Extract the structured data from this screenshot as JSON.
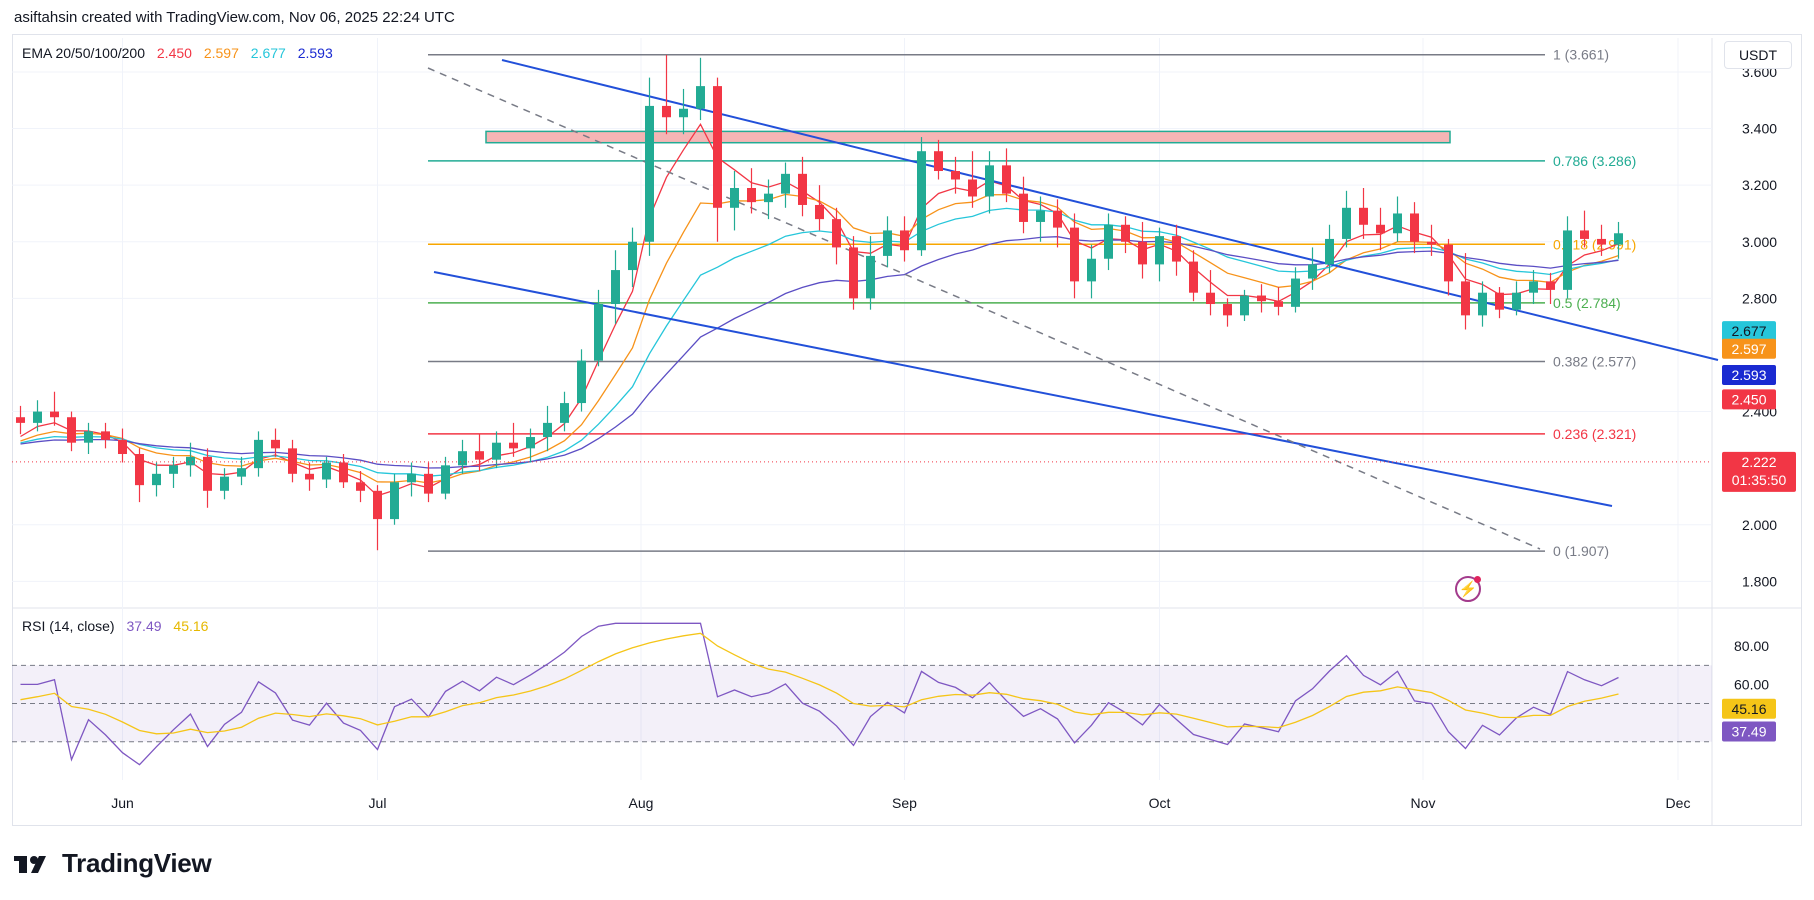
{
  "header": {
    "attribution": "asiftahsin created with TradingView.com, Nov 06, 2025 22:24 UTC"
  },
  "toolbar": {
    "currency": "USDT"
  },
  "legends": {
    "ema": {
      "label": "EMA 20/50/100/200",
      "values": [
        "2.450",
        "2.597",
        "2.677",
        "2.593"
      ]
    },
    "rsi": {
      "label": "RSI (14, close)",
      "values": [
        "37.49",
        "45.16"
      ]
    }
  },
  "brand": {
    "name": "TradingView"
  },
  "colors": {
    "up": "#22ab94",
    "down": "#f23645",
    "ema20": "#f23645",
    "ema50": "#f7931a",
    "ema100": "#26c6da",
    "ema200": "#5b4ec4",
    "channel": "#2250d9",
    "zone": "#f5b5b5",
    "rsi": "#7e57c2",
    "rsi_ma": "#f5c518"
  },
  "chart_data": [
    {
      "type": "candlestick",
      "ylim": [
        1.72,
        3.72
      ],
      "y_ticks": [
        "3.600",
        "3.400",
        "3.200",
        "3.000",
        "2.800",
        "2.400",
        "2.000",
        "1.800"
      ],
      "y_tick_values": [
        3.6,
        3.4,
        3.2,
        3.0,
        2.8,
        2.4,
        2.0,
        1.8
      ],
      "x_ticks": [
        "Jun",
        "Jul",
        "Aug",
        "Sep",
        "Oct",
        "Nov",
        "Dec"
      ],
      "x_tick_dates": [
        "2025-06-01",
        "2025-07-01",
        "2025-08-01",
        "2025-09-01",
        "2025-10-01",
        "2025-11-01",
        "2025-12-01"
      ],
      "x_range": [
        "2025-05-19",
        "2025-12-05"
      ],
      "candles": [
        {
          "d": "2025-05-20",
          "o": 2.38,
          "h": 2.42,
          "l": 2.32,
          "c": 2.36
        },
        {
          "d": "2025-05-22",
          "o": 2.36,
          "h": 2.44,
          "l": 2.33,
          "c": 2.4
        },
        {
          "d": "2025-05-24",
          "o": 2.4,
          "h": 2.47,
          "l": 2.35,
          "c": 2.38
        },
        {
          "d": "2025-05-26",
          "o": 2.38,
          "h": 2.4,
          "l": 2.26,
          "c": 2.29
        },
        {
          "d": "2025-05-28",
          "o": 2.29,
          "h": 2.36,
          "l": 2.25,
          "c": 2.33
        },
        {
          "d": "2025-05-30",
          "o": 2.33,
          "h": 2.36,
          "l": 2.27,
          "c": 2.3
        },
        {
          "d": "2025-06-01",
          "o": 2.3,
          "h": 2.34,
          "l": 2.22,
          "c": 2.25
        },
        {
          "d": "2025-06-03",
          "o": 2.25,
          "h": 2.27,
          "l": 2.08,
          "c": 2.14
        },
        {
          "d": "2025-06-05",
          "o": 2.14,
          "h": 2.22,
          "l": 2.1,
          "c": 2.18
        },
        {
          "d": "2025-06-07",
          "o": 2.18,
          "h": 2.24,
          "l": 2.13,
          "c": 2.21
        },
        {
          "d": "2025-06-09",
          "o": 2.21,
          "h": 2.29,
          "l": 2.17,
          "c": 2.24
        },
        {
          "d": "2025-06-11",
          "o": 2.24,
          "h": 2.27,
          "l": 2.06,
          "c": 2.12
        },
        {
          "d": "2025-06-13",
          "o": 2.12,
          "h": 2.2,
          "l": 2.09,
          "c": 2.17
        },
        {
          "d": "2025-06-15",
          "o": 2.17,
          "h": 2.24,
          "l": 2.14,
          "c": 2.2
        },
        {
          "d": "2025-06-17",
          "o": 2.2,
          "h": 2.33,
          "l": 2.17,
          "c": 2.3
        },
        {
          "d": "2025-06-19",
          "o": 2.3,
          "h": 2.34,
          "l": 2.24,
          "c": 2.27
        },
        {
          "d": "2025-06-21",
          "o": 2.27,
          "h": 2.3,
          "l": 2.15,
          "c": 2.18
        },
        {
          "d": "2025-06-23",
          "o": 2.18,
          "h": 2.22,
          "l": 2.12,
          "c": 2.16
        },
        {
          "d": "2025-06-25",
          "o": 2.16,
          "h": 2.24,
          "l": 2.13,
          "c": 2.22
        },
        {
          "d": "2025-06-27",
          "o": 2.22,
          "h": 2.25,
          "l": 2.13,
          "c": 2.15
        },
        {
          "d": "2025-06-29",
          "o": 2.15,
          "h": 2.19,
          "l": 2.08,
          "c": 2.12
        },
        {
          "d": "2025-07-01",
          "o": 2.12,
          "h": 2.14,
          "l": 1.91,
          "c": 2.02
        },
        {
          "d": "2025-07-03",
          "o": 2.02,
          "h": 2.18,
          "l": 2.0,
          "c": 2.15
        },
        {
          "d": "2025-07-05",
          "o": 2.15,
          "h": 2.22,
          "l": 2.1,
          "c": 2.18
        },
        {
          "d": "2025-07-07",
          "o": 2.18,
          "h": 2.22,
          "l": 2.08,
          "c": 2.11
        },
        {
          "d": "2025-07-09",
          "o": 2.11,
          "h": 2.24,
          "l": 2.09,
          "c": 2.21
        },
        {
          "d": "2025-07-11",
          "o": 2.21,
          "h": 2.3,
          "l": 2.18,
          "c": 2.26
        },
        {
          "d": "2025-07-13",
          "o": 2.26,
          "h": 2.32,
          "l": 2.19,
          "c": 2.23
        },
        {
          "d": "2025-07-15",
          "o": 2.23,
          "h": 2.33,
          "l": 2.2,
          "c": 2.29
        },
        {
          "d": "2025-07-17",
          "o": 2.29,
          "h": 2.36,
          "l": 2.24,
          "c": 2.27
        },
        {
          "d": "2025-07-19",
          "o": 2.27,
          "h": 2.34,
          "l": 2.22,
          "c": 2.31
        },
        {
          "d": "2025-07-21",
          "o": 2.31,
          "h": 2.42,
          "l": 2.26,
          "c": 2.36
        },
        {
          "d": "2025-07-23",
          "o": 2.36,
          "h": 2.47,
          "l": 2.33,
          "c": 2.43
        },
        {
          "d": "2025-07-25",
          "o": 2.43,
          "h": 2.62,
          "l": 2.4,
          "c": 2.58
        },
        {
          "d": "2025-07-27",
          "o": 2.58,
          "h": 2.83,
          "l": 2.56,
          "c": 2.78
        },
        {
          "d": "2025-07-29",
          "o": 2.78,
          "h": 2.97,
          "l": 2.71,
          "c": 2.9
        },
        {
          "d": "2025-07-31",
          "o": 2.9,
          "h": 3.05,
          "l": 2.84,
          "c": 3.0
        },
        {
          "d": "2025-08-02",
          "o": 3.0,
          "h": 3.58,
          "l": 2.95,
          "c": 3.48
        },
        {
          "d": "2025-08-04",
          "o": 3.48,
          "h": 3.66,
          "l": 3.38,
          "c": 3.44
        },
        {
          "d": "2025-08-06",
          "o": 3.44,
          "h": 3.54,
          "l": 3.38,
          "c": 3.47
        },
        {
          "d": "2025-08-08",
          "o": 3.47,
          "h": 3.65,
          "l": 3.43,
          "c": 3.55
        },
        {
          "d": "2025-08-10",
          "o": 3.55,
          "h": 3.58,
          "l": 3.0,
          "c": 3.12
        },
        {
          "d": "2025-08-12",
          "o": 3.12,
          "h": 3.25,
          "l": 3.04,
          "c": 3.19
        },
        {
          "d": "2025-08-14",
          "o": 3.19,
          "h": 3.26,
          "l": 3.1,
          "c": 3.14
        },
        {
          "d": "2025-08-16",
          "o": 3.14,
          "h": 3.22,
          "l": 3.08,
          "c": 3.17
        },
        {
          "d": "2025-08-18",
          "o": 3.17,
          "h": 3.28,
          "l": 3.12,
          "c": 3.24
        },
        {
          "d": "2025-08-20",
          "o": 3.24,
          "h": 3.3,
          "l": 3.09,
          "c": 3.13
        },
        {
          "d": "2025-08-22",
          "o": 3.13,
          "h": 3.2,
          "l": 3.04,
          "c": 3.08
        },
        {
          "d": "2025-08-24",
          "o": 3.08,
          "h": 3.12,
          "l": 2.92,
          "c": 2.98
        },
        {
          "d": "2025-08-26",
          "o": 2.98,
          "h": 3.02,
          "l": 2.76,
          "c": 2.8
        },
        {
          "d": "2025-08-28",
          "o": 2.8,
          "h": 3.02,
          "l": 2.76,
          "c": 2.95
        },
        {
          "d": "2025-08-30",
          "o": 2.95,
          "h": 3.09,
          "l": 2.91,
          "c": 3.04
        },
        {
          "d": "2025-09-01",
          "o": 3.04,
          "h": 3.09,
          "l": 2.93,
          "c": 2.97
        },
        {
          "d": "2025-09-03",
          "o": 2.97,
          "h": 3.37,
          "l": 2.95,
          "c": 3.32
        },
        {
          "d": "2025-09-05",
          "o": 3.32,
          "h": 3.36,
          "l": 3.22,
          "c": 3.25
        },
        {
          "d": "2025-09-07",
          "o": 3.25,
          "h": 3.3,
          "l": 3.17,
          "c": 3.22
        },
        {
          "d": "2025-09-09",
          "o": 3.22,
          "h": 3.32,
          "l": 3.12,
          "c": 3.16
        },
        {
          "d": "2025-09-11",
          "o": 3.16,
          "h": 3.32,
          "l": 3.1,
          "c": 3.27
        },
        {
          "d": "2025-09-13",
          "o": 3.27,
          "h": 3.33,
          "l": 3.14,
          "c": 3.17
        },
        {
          "d": "2025-09-15",
          "o": 3.17,
          "h": 3.23,
          "l": 3.03,
          "c": 3.07
        },
        {
          "d": "2025-09-17",
          "o": 3.07,
          "h": 3.16,
          "l": 3.0,
          "c": 3.11
        },
        {
          "d": "2025-09-19",
          "o": 3.11,
          "h": 3.15,
          "l": 2.98,
          "c": 3.05
        },
        {
          "d": "2025-09-21",
          "o": 3.05,
          "h": 3.1,
          "l": 2.8,
          "c": 2.86
        },
        {
          "d": "2025-09-23",
          "o": 2.86,
          "h": 2.99,
          "l": 2.8,
          "c": 2.94
        },
        {
          "d": "2025-09-25",
          "o": 2.94,
          "h": 3.1,
          "l": 2.9,
          "c": 3.06
        },
        {
          "d": "2025-09-27",
          "o": 3.06,
          "h": 3.09,
          "l": 2.96,
          "c": 3.0
        },
        {
          "d": "2025-09-29",
          "o": 3.0,
          "h": 3.07,
          "l": 2.87,
          "c": 2.92
        },
        {
          "d": "2025-10-01",
          "o": 2.92,
          "h": 3.05,
          "l": 2.86,
          "c": 3.02
        },
        {
          "d": "2025-10-03",
          "o": 3.02,
          "h": 3.06,
          "l": 2.88,
          "c": 2.93
        },
        {
          "d": "2025-10-05",
          "o": 2.93,
          "h": 2.97,
          "l": 2.79,
          "c": 2.82
        },
        {
          "d": "2025-10-07",
          "o": 2.82,
          "h": 2.9,
          "l": 2.74,
          "c": 2.78
        },
        {
          "d": "2025-10-09",
          "o": 2.78,
          "h": 2.8,
          "l": 2.7,
          "c": 2.74
        },
        {
          "d": "2025-10-11",
          "o": 2.74,
          "h": 2.83,
          "l": 2.72,
          "c": 2.81
        },
        {
          "d": "2025-10-13",
          "o": 2.81,
          "h": 2.85,
          "l": 2.75,
          "c": 2.79
        },
        {
          "d": "2025-10-15",
          "o": 2.79,
          "h": 2.84,
          "l": 2.74,
          "c": 2.77
        },
        {
          "d": "2025-10-17",
          "o": 2.77,
          "h": 2.91,
          "l": 2.75,
          "c": 2.87
        },
        {
          "d": "2025-10-19",
          "o": 2.87,
          "h": 2.98,
          "l": 2.83,
          "c": 2.92
        },
        {
          "d": "2025-10-21",
          "o": 2.92,
          "h": 3.06,
          "l": 2.89,
          "c": 3.01
        },
        {
          "d": "2025-10-23",
          "o": 3.01,
          "h": 3.18,
          "l": 2.98,
          "c": 3.12
        },
        {
          "d": "2025-10-25",
          "o": 3.12,
          "h": 3.19,
          "l": 3.01,
          "c": 3.06
        },
        {
          "d": "2025-10-27",
          "o": 3.06,
          "h": 3.12,
          "l": 2.97,
          "c": 3.03
        },
        {
          "d": "2025-10-29",
          "o": 3.03,
          "h": 3.16,
          "l": 3.0,
          "c": 3.1
        },
        {
          "d": "2025-10-31",
          "o": 3.1,
          "h": 3.14,
          "l": 2.96,
          "c": 3.0
        },
        {
          "d": "2025-11-02",
          "o": 3.0,
          "h": 3.06,
          "l": 2.95,
          "c": 2.99
        },
        {
          "d": "2025-11-04",
          "o": 2.99,
          "h": 3.01,
          "l": 2.81,
          "c": 2.86
        },
        {
          "d": "2025-11-06",
          "o": 2.86,
          "h": 2.96,
          "l": 2.69,
          "c": 2.74
        },
        {
          "d": "2025-11-08",
          "o": 2.74,
          "h": 2.86,
          "l": 2.7,
          "c": 2.82
        },
        {
          "d": "2025-11-10",
          "o": 2.82,
          "h": 2.84,
          "l": 2.73,
          "c": 2.76
        },
        {
          "d": "2025-11-12",
          "o": 2.76,
          "h": 2.86,
          "l": 2.74,
          "c": 2.82
        },
        {
          "d": "2025-11-14",
          "o": 2.82,
          "h": 2.9,
          "l": 2.78,
          "c": 2.86
        },
        {
          "d": "2025-11-16",
          "o": 2.86,
          "h": 2.89,
          "l": 2.78,
          "c": 2.83
        },
        {
          "d": "2025-11-18",
          "o": 2.83,
          "h": 3.09,
          "l": 2.8,
          "c": 3.04
        },
        {
          "d": "2025-11-20",
          "o": 3.04,
          "h": 3.11,
          "l": 2.98,
          "c": 3.01
        },
        {
          "d": "2025-11-22",
          "o": 3.01,
          "h": 3.06,
          "l": 2.95,
          "c": 2.99
        },
        {
          "d": "2025-11-24",
          "o": 2.99,
          "h": 3.07,
          "l": 2.94,
          "c": 3.03
        }
      ],
      "note_hidden": "",
      "fib_levels": [
        {
          "ratio": "1",
          "value": 3.661,
          "label": "1 (3.661)",
          "color": "#787b86"
        },
        {
          "ratio": "0.786",
          "value": 3.286,
          "label": "0.786 (3.286)",
          "color": "#22ab94"
        },
        {
          "ratio": "0.618",
          "value": 2.991,
          "label": "0.618 (2.991)",
          "color": "#f7a600"
        },
        {
          "ratio": "0.5",
          "value": 2.784,
          "label": "0.5 (2.784)",
          "color": "#4caf50"
        },
        {
          "ratio": "0.382",
          "value": 2.577,
          "label": "0.382 (2.577)",
          "color": "#787b86"
        },
        {
          "ratio": "0.236",
          "value": 2.321,
          "label": "0.236 (2.321)",
          "color": "#f23645"
        },
        {
          "ratio": "0",
          "value": 1.907,
          "label": "0 (1.907)",
          "color": "#787b86"
        }
      ],
      "resistance_zone": [
        3.35,
        3.39
      ],
      "price_labels": [
        {
          "value": 2.677,
          "text": "2.677",
          "color": "#26c6da",
          "fg": "#131722"
        },
        {
          "value": 2.597,
          "text": "2.597",
          "color": "#f7931a",
          "fg": "#ffffff"
        },
        {
          "value": 2.593,
          "text": "2.593",
          "color": "#1a2ad1",
          "fg": "#ffffff"
        },
        {
          "value": 2.45,
          "text": "2.450",
          "color": "#f23645",
          "fg": "#ffffff"
        }
      ],
      "current_price": {
        "value": 2.222,
        "text": "2.222",
        "countdown": "01:35:50"
      }
    },
    {
      "type": "line",
      "name": "RSI (14, close)",
      "ylim": [
        10,
        100
      ],
      "y_ticks": [
        "80.00",
        "60.00"
      ],
      "y_tick_values": [
        80,
        60
      ],
      "bands": {
        "upper": 70,
        "middle": 50,
        "lower": 30
      },
      "current": [
        {
          "text": "45.16",
          "value": 45.16,
          "color": "#f5c518",
          "fg": "#131722"
        },
        {
          "text": "37.49",
          "value": 37.49,
          "color": "#7e57c2",
          "fg": "#ffffff"
        }
      ]
    }
  ]
}
